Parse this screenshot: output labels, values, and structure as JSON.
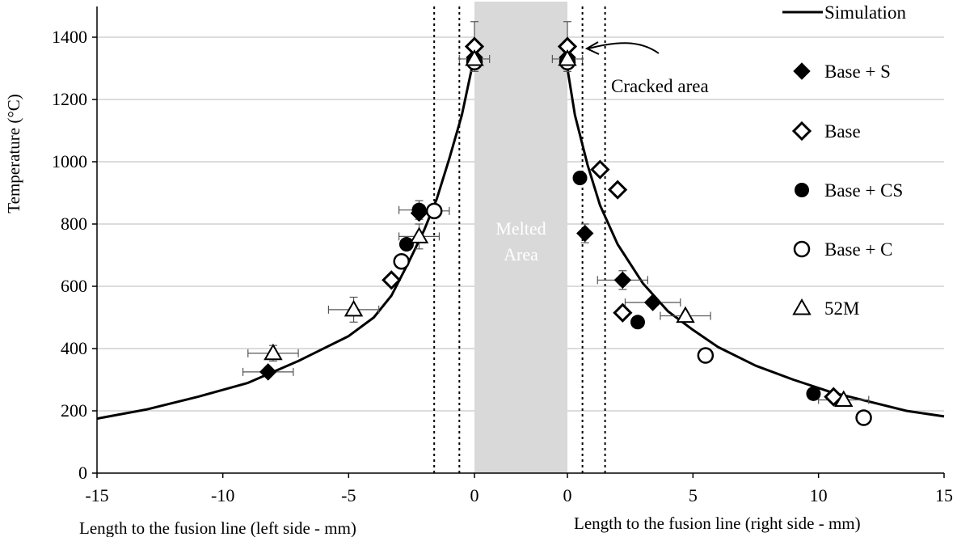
{
  "chart_data": {
    "type": "scatter",
    "ylabel": "Temperature (°C)",
    "xlabel_left": "Length to the fusion line (left side - mm)",
    "xlabel_right": "Length to the fusion line (right side - mm)",
    "ylim": [
      0,
      1500
    ],
    "yticks": [
      0,
      200,
      400,
      600,
      800,
      1000,
      1200,
      1400
    ],
    "xlim_left": [
      -15,
      0
    ],
    "xlim_right": [
      0,
      15
    ],
    "xticks_left": [
      -15,
      -10,
      -5,
      0
    ],
    "xticks_right": [
      0,
      5,
      10,
      15
    ],
    "tick_text": {
      "y": [
        "0",
        "200",
        "400",
        "600",
        "800",
        "1000",
        "1200",
        "1400"
      ],
      "x_left": [
        "-15",
        "-10",
        "-5",
        "0"
      ],
      "x_right": [
        "0",
        "5",
        "10",
        "15"
      ]
    },
    "grid": "horizontal",
    "legend_position": "right",
    "melted_area_label": [
      "Melted",
      "Area"
    ],
    "annotation": "Cracked area",
    "dotted_lines_x_left": [
      -1.6,
      -0.6
    ],
    "dotted_lines_x_right": [
      0.6,
      1.5
    ],
    "simulation": {
      "name": "Simulation",
      "left": [
        [
          -15,
          175
        ],
        [
          -13,
          205
        ],
        [
          -11,
          245
        ],
        [
          -9,
          290
        ],
        [
          -7,
          360
        ],
        [
          -5,
          440
        ],
        [
          -4,
          500
        ],
        [
          -3.3,
          570
        ],
        [
          -2.6,
          680
        ],
        [
          -2,
          780
        ],
        [
          -1.5,
          880
        ],
        [
          -1,
          1010
        ],
        [
          -0.5,
          1150
        ],
        [
          0,
          1340
        ]
      ],
      "right": [
        [
          0,
          1300
        ],
        [
          0.3,
          1150
        ],
        [
          0.8,
          990
        ],
        [
          1.3,
          860
        ],
        [
          2,
          735
        ],
        [
          3,
          610
        ],
        [
          4,
          520
        ],
        [
          5,
          460
        ],
        [
          6,
          405
        ],
        [
          7.5,
          345
        ],
        [
          9,
          300
        ],
        [
          10.5,
          260
        ],
        [
          12,
          230
        ],
        [
          13.5,
          200
        ],
        [
          15,
          182
        ]
      ]
    },
    "series": [
      {
        "name": "Base + S",
        "marker": "diamond-filled",
        "left": [
          [
            -8.2,
            325,
            1.0,
            0
          ],
          [
            -2.2,
            835,
            0,
            0
          ],
          [
            0,
            1335,
            0,
            0
          ]
        ],
        "right": [
          [
            0.7,
            770,
            0,
            30
          ],
          [
            2.2,
            620,
            1.0,
            30
          ],
          [
            3.4,
            548,
            1.1,
            0
          ],
          [
            0,
            1335,
            0,
            0
          ]
        ]
      },
      {
        "name": "Base",
        "marker": "diamond-open",
        "left": [
          [
            -3.3,
            620,
            0,
            0
          ],
          [
            0,
            1370,
            0,
            80
          ]
        ],
        "right": [
          [
            1.3,
            975,
            0,
            0
          ],
          [
            2.0,
            910,
            0,
            0
          ],
          [
            2.2,
            515,
            0,
            0
          ],
          [
            10.6,
            245,
            0,
            0
          ],
          [
            0,
            1370,
            0,
            80
          ]
        ]
      },
      {
        "name": "Base + CS",
        "marker": "circle-filled",
        "left": [
          [
            -2.7,
            735,
            0,
            0
          ],
          [
            -2.2,
            845,
            0.8,
            30
          ]
        ],
        "right": [
          [
            0.5,
            948,
            0,
            0
          ],
          [
            2.8,
            485,
            0,
            0
          ],
          [
            9.8,
            255,
            0,
            0
          ]
        ]
      },
      {
        "name": "Base + C",
        "marker": "circle-open",
        "left": [
          [
            -2.9,
            680,
            0,
            0
          ],
          [
            -1.6,
            842,
            0.6,
            0
          ],
          [
            0,
            1320,
            0,
            0
          ]
        ],
        "right": [
          [
            5.5,
            378,
            0,
            0
          ],
          [
            11.8,
            178,
            0,
            0
          ],
          [
            0,
            1320,
            0,
            0
          ]
        ]
      },
      {
        "name": "52M",
        "marker": "triangle-open",
        "left": [
          [
            -8.0,
            385,
            1.0,
            25
          ],
          [
            -4.8,
            525,
            1.0,
            40
          ],
          [
            -2.2,
            760,
            0.8,
            40
          ],
          [
            0,
            1330,
            0.6,
            0
          ]
        ],
        "right": [
          [
            4.7,
            505,
            1.0,
            0
          ],
          [
            11.0,
            235,
            1.0,
            0
          ],
          [
            0,
            1330,
            0.6,
            0
          ]
        ]
      }
    ]
  }
}
